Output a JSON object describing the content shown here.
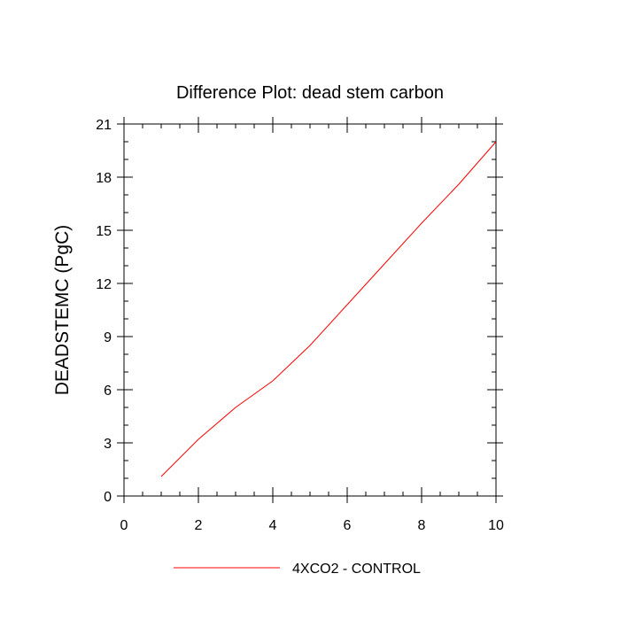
{
  "chart_data": {
    "type": "line",
    "title": "Difference Plot: dead stem carbon",
    "xlabel": "",
    "ylabel": "DEADSTEMC  (PgC)",
    "xlim": [
      0,
      10
    ],
    "ylim": [
      0,
      21
    ],
    "x_ticks": [
      0,
      2,
      4,
      6,
      8,
      10
    ],
    "y_ticks": [
      0,
      3,
      6,
      9,
      12,
      15,
      18,
      21
    ],
    "grid": false,
    "legend_position": "bottom-center",
    "series": [
      {
        "name": "4XCO2 - CONTROL",
        "color": "#ff0000",
        "x": [
          1,
          2,
          3,
          4,
          5,
          6,
          7,
          8,
          9,
          10
        ],
        "y": [
          1.1,
          3.2,
          5.0,
          6.5,
          8.5,
          10.8,
          13.1,
          15.4,
          17.6,
          20.0
        ]
      }
    ]
  }
}
